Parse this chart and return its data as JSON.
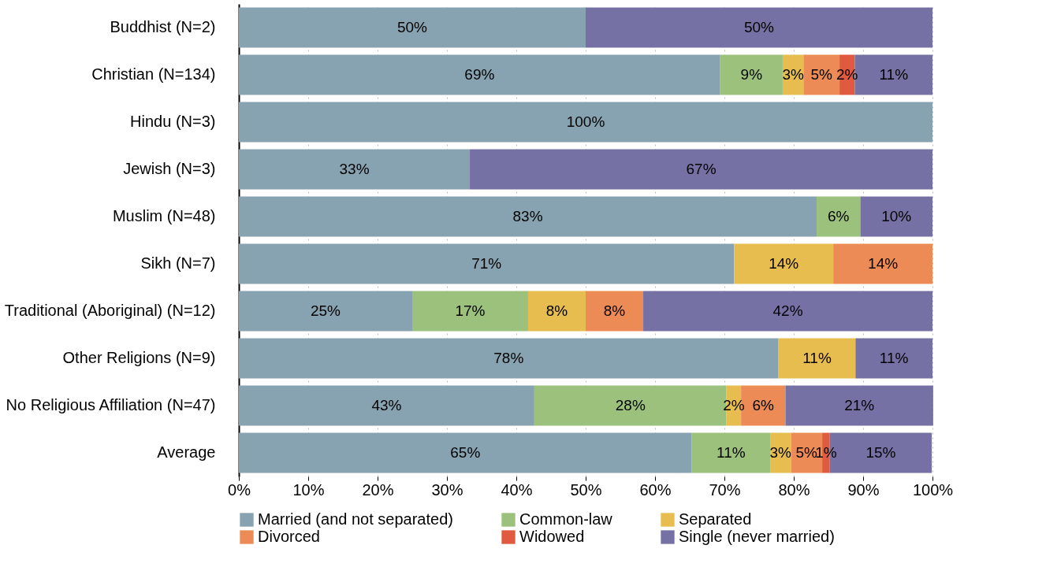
{
  "chart_data": {
    "type": "bar",
    "orientation": "horizontal",
    "stacked": true,
    "categories": [
      "Buddhist (N=2)",
      "Christian (N=134)",
      "Hindu (N=3)",
      "Jewish (N=3)",
      "Muslim (N=48)",
      "Sikh (N=7)",
      "Traditional (Aboriginal) (N=12)",
      "Other Religions (N=9)",
      "No Religious Affiliation (N=47)",
      "Average"
    ],
    "series": [
      {
        "name": "Married (and not separated)",
        "color": "#87a2b0",
        "values": [
          50,
          69.4,
          100,
          33.3,
          83.3,
          71.4,
          25,
          77.8,
          42.6,
          65.3
        ],
        "value_labels": [
          "50%",
          "69%",
          "100%",
          "33%",
          "83%",
          "71%",
          "25%",
          "78%",
          "43%",
          "65%"
        ]
      },
      {
        "name": "Common-law",
        "color": "#9cc17c",
        "values": [
          null,
          9.0,
          null,
          null,
          6.3,
          null,
          16.7,
          null,
          27.7,
          11.3
        ],
        "value_labels": [
          null,
          "9%",
          null,
          null,
          "6%",
          null,
          "17%",
          null,
          "28%",
          "11%"
        ]
      },
      {
        "name": "Separated",
        "color": "#e8bd4f",
        "values": [
          null,
          3.0,
          null,
          null,
          null,
          14.3,
          8.3,
          11.1,
          2.1,
          3.0
        ],
        "value_labels": [
          null,
          "3%",
          null,
          null,
          null,
          "14%",
          "8%",
          "11%",
          "2%",
          "3%"
        ]
      },
      {
        "name": "Divorced",
        "color": "#ec8b55",
        "values": [
          null,
          5.2,
          null,
          null,
          null,
          14.3,
          8.3,
          null,
          6.4,
          4.5
        ],
        "value_labels": [
          null,
          "5%",
          null,
          null,
          null,
          "14%",
          "8%",
          null,
          "6%",
          "5%"
        ]
      },
      {
        "name": "Widowed",
        "color": "#e05a40",
        "values": [
          null,
          2.2,
          null,
          null,
          null,
          null,
          null,
          null,
          null,
          1.1
        ],
        "value_labels": [
          null,
          "2%",
          null,
          null,
          null,
          null,
          null,
          null,
          null,
          "1%"
        ]
      },
      {
        "name": "Single (never married)",
        "color": "#7671a4",
        "values": [
          50,
          11.2,
          null,
          66.7,
          10.4,
          null,
          41.7,
          11.1,
          21.3,
          14.7
        ],
        "value_labels": [
          "50%",
          "11%",
          null,
          "67%",
          "10%",
          null,
          "42%",
          "11%",
          "21%",
          "15%"
        ]
      }
    ],
    "xlim": [
      0,
      100
    ],
    "xticks": [
      {
        "value": 0,
        "label": "0%"
      },
      {
        "value": 10,
        "label": "10%"
      },
      {
        "value": 20,
        "label": "20%"
      },
      {
        "value": 30,
        "label": "30%"
      },
      {
        "value": 40,
        "label": "40%"
      },
      {
        "value": 50,
        "label": "50%"
      },
      {
        "value": 60,
        "label": "60%"
      },
      {
        "value": 70,
        "label": "70%"
      },
      {
        "value": 80,
        "label": "80%"
      },
      {
        "value": 90,
        "label": "90%"
      },
      {
        "value": 100,
        "label": "100%"
      }
    ],
    "grid": "x",
    "legend": "bottom"
  }
}
